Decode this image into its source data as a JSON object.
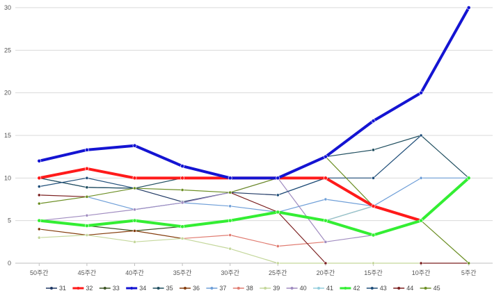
{
  "chart_data": {
    "type": "line",
    "title": "",
    "xlabel": "",
    "ylabel": "",
    "categories": [
      "50주간",
      "45주간",
      "40주간",
      "35주간",
      "30주간",
      "25주간",
      "20주간",
      "15주간",
      "10주간",
      "5주간"
    ],
    "ylim": [
      0,
      30
    ],
    "yticks": [
      0,
      5,
      10,
      15,
      20,
      25,
      30
    ],
    "grid": "horizontal",
    "legend": "bottom",
    "series": [
      {
        "name": "31",
        "color": "#1f3864",
        "width": 1.2,
        "values": [
          10,
          8.9,
          8.8,
          7.2,
          8.3,
          8,
          10,
          null,
          null,
          null
        ]
      },
      {
        "name": "32",
        "color": "#ff1a1a",
        "width": 4,
        "values": [
          10,
          11.1,
          10,
          10,
          10,
          10,
          10,
          6.7,
          5,
          null
        ]
      },
      {
        "name": "33",
        "color": "#3b5323",
        "width": 1.2,
        "values": [
          5,
          4.4,
          3.8,
          4.3,
          5,
          6,
          5,
          3.3,
          null,
          null
        ]
      },
      {
        "name": "34",
        "color": "#1414d2",
        "width": 4,
        "values": [
          12,
          13.3,
          13.8,
          11.4,
          10,
          10,
          12.5,
          16.7,
          20,
          30
        ]
      },
      {
        "name": "35",
        "color": "#1f4e5f",
        "width": 1.2,
        "values": [
          10,
          8.9,
          8.8,
          10,
          10,
          10,
          12.5,
          13.3,
          15,
          10
        ]
      },
      {
        "name": "36",
        "color": "#843c0c",
        "width": 1.2,
        "values": [
          4,
          3.3,
          3.8,
          2.9,
          null,
          6,
          5,
          6.7,
          5,
          null
        ]
      },
      {
        "name": "37",
        "color": "#6f9fd8",
        "width": 1.2,
        "values": [
          null,
          7.8,
          6.3,
          7.1,
          6.7,
          6,
          7.5,
          6.7,
          10,
          10
        ]
      },
      {
        "name": "38",
        "color": "#e07b70",
        "width": 1.2,
        "values": [
          null,
          null,
          null,
          2.9,
          3.3,
          2,
          2.5,
          null,
          null,
          null
        ]
      },
      {
        "name": "39",
        "color": "#c4d79b",
        "width": 1.2,
        "values": [
          3,
          3.3,
          2.5,
          2.9,
          1.7,
          0,
          0,
          0,
          0,
          null
        ]
      },
      {
        "name": "40",
        "color": "#a08cc0",
        "width": 1.2,
        "values": [
          5,
          5.6,
          6.3,
          7.1,
          8.3,
          10,
          2.5,
          3.3,
          null,
          null
        ]
      },
      {
        "name": "41",
        "color": "#92cddc",
        "width": 1.2,
        "values": [
          null,
          null,
          null,
          null,
          null,
          null,
          5,
          6.7,
          null,
          null
        ]
      },
      {
        "name": "42",
        "color": "#33ee33",
        "width": 4,
        "values": [
          5,
          4.4,
          5,
          4.3,
          5,
          6,
          5,
          3.3,
          5,
          10
        ]
      },
      {
        "name": "43",
        "color": "#1f4e79",
        "width": 1.2,
        "values": [
          9,
          10,
          8.8,
          null,
          null,
          8,
          10,
          10,
          15,
          null
        ]
      },
      {
        "name": "44",
        "color": "#7b1f1f",
        "width": 1.2,
        "values": [
          8,
          7.8,
          null,
          null,
          8.3,
          6,
          0,
          null,
          0,
          0
        ]
      },
      {
        "name": "45",
        "color": "#6b8e23",
        "width": 1.2,
        "values": [
          7,
          7.8,
          8.8,
          8.6,
          8.3,
          10,
          12.5,
          6.7,
          5,
          0
        ]
      }
    ]
  }
}
